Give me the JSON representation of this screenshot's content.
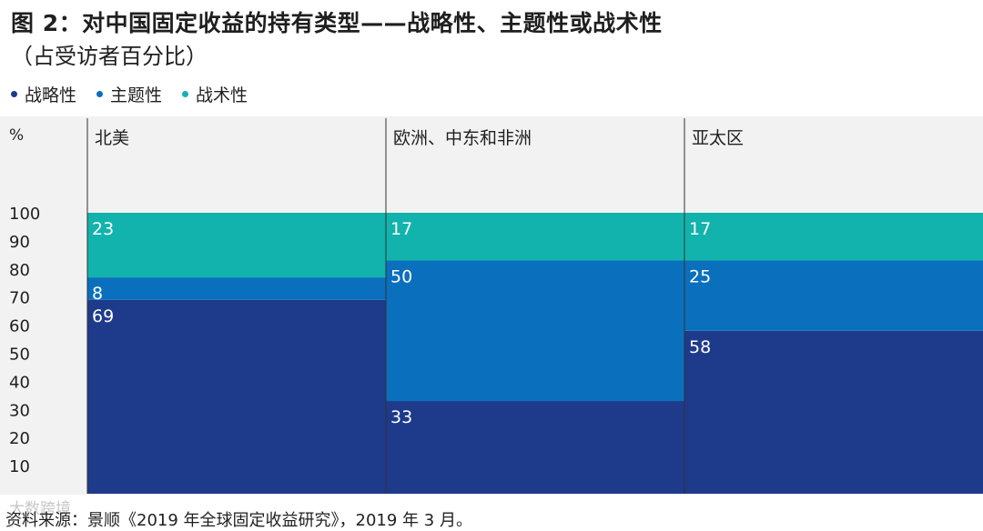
{
  "figure": {
    "title": "图 2：对中国固定收益的持有类型——战略性、主题性或战术性",
    "subtitle": "（占受访者百分比）",
    "source": "资料来源：景顺《2019 年全球固定收益研究》，2019 年 3 月。",
    "watermark": "大数跨境"
  },
  "legend": [
    {
      "label": "战略性",
      "color": "#1e3a8a"
    },
    {
      "label": "主题性",
      "color": "#0a6fbd"
    },
    {
      "label": "战术性",
      "color": "#12b3ac"
    }
  ],
  "chart_data": {
    "type": "bar",
    "stacked": true,
    "variable_width": true,
    "ylabel": "%",
    "ylim": [
      0,
      100
    ],
    "yticks": [
      10,
      20,
      30,
      40,
      50,
      60,
      70,
      80,
      90,
      100
    ],
    "categories": [
      "北美",
      "欧洲、中东和非洲",
      "亚太区"
    ],
    "series": [
      {
        "name": "战略性",
        "color": "#1e3a8a",
        "values": [
          69,
          33,
          58
        ]
      },
      {
        "name": "主题性",
        "color": "#0a6fbd",
        "values": [
          8,
          50,
          25
        ]
      },
      {
        "name": "战术性",
        "color": "#12b3ac",
        "values": [
          23,
          17,
          17
        ]
      }
    ]
  }
}
